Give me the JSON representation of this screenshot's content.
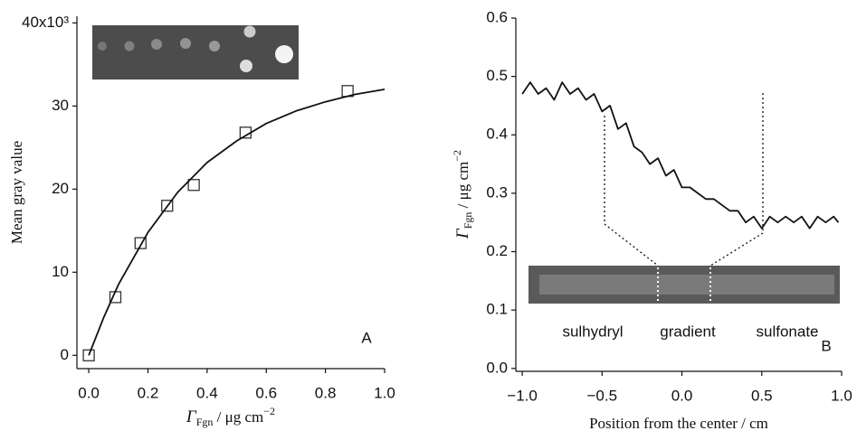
{
  "chart_data": [
    {
      "type": "scatter",
      "y_label": "Mean gray value",
      "x_label": {
        "symbol": "Γ",
        "subscript": "Fgn",
        "text": " / μg cm",
        "superscript": "−2"
      },
      "annotation": "A",
      "xlim": [
        -0.04,
        1.0
      ],
      "ylim": [
        -1.6,
        40.8
      ],
      "xticks": [
        {
          "value": 0,
          "label": "0.0"
        },
        0.2,
        0.4,
        0.6,
        0.8,
        {
          "value": 1.0,
          "label": "1.0"
        }
      ],
      "yticks": [
        0,
        10,
        20,
        30,
        {
          "value": 40,
          "label": "40x10³"
        }
      ],
      "series": [
        {
          "type": "scatter",
          "marker": "square",
          "color": "#333333",
          "x": [
            0,
            0.09,
            0.175,
            0.265,
            0.355,
            0.53,
            0.875
          ],
          "values": [
            0,
            7,
            13.5,
            18,
            20.5,
            26.8,
            31.8
          ]
        },
        {
          "type": "line",
          "color": "#111111",
          "x": [
            0,
            0.05,
            0.1,
            0.2,
            0.3,
            0.4,
            0.5,
            0.6,
            0.7,
            0.8,
            0.9,
            1.0
          ],
          "values": [
            0,
            4.5,
            8.5,
            14.8,
            19.6,
            23.2,
            25.8,
            27.9,
            29.4,
            30.5,
            31.4,
            32.0
          ]
        }
      ]
    },
    {
      "type": "line",
      "y_label": {
        "symbol": "Γ",
        "subscript": "Fgn",
        "text": " / μg cm",
        "superscript": "−2"
      },
      "x_label": "Position from the center / cm",
      "annotations": [
        "sulhydryl",
        "gradient",
        "sulfonate",
        "B"
      ],
      "xlim": [
        -1.04,
        1.0
      ],
      "ylim": [
        -0.005,
        0.6
      ],
      "xticks": [
        {
          "value": -1.0,
          "label": "−1.0"
        },
        {
          "value": -0.5,
          "label": "−0.5"
        },
        {
          "value": 0,
          "label": "0.0"
        },
        0.5,
        {
          "value": 1.0,
          "label": "1.0"
        }
      ],
      "yticks": [
        {
          "value": 0,
          "label": "0.0"
        },
        0.1,
        0.2,
        0.3,
        0.4,
        0.5,
        0.6
      ],
      "series": [
        {
          "type": "line",
          "color": "#111111",
          "x": [
            -1.0,
            -0.95,
            -0.9,
            -0.85,
            -0.8,
            -0.75,
            -0.7,
            -0.65,
            -0.6,
            -0.55,
            -0.5,
            -0.45,
            -0.4,
            -0.35,
            -0.3,
            -0.25,
            -0.2,
            -0.15,
            -0.1,
            -0.05,
            0,
            0.05,
            0.1,
            0.15,
            0.2,
            0.25,
            0.3,
            0.35,
            0.4,
            0.45,
            0.5,
            0.55,
            0.6,
            0.65,
            0.7,
            0.75,
            0.8,
            0.85,
            0.9,
            0.95,
            0.98
          ],
          "values": [
            0.47,
            0.49,
            0.47,
            0.48,
            0.46,
            0.49,
            0.47,
            0.48,
            0.46,
            0.47,
            0.44,
            0.45,
            0.41,
            0.42,
            0.38,
            0.37,
            0.35,
            0.36,
            0.33,
            0.34,
            0.31,
            0.31,
            0.3,
            0.29,
            0.29,
            0.28,
            0.27,
            0.27,
            0.25,
            0.26,
            0.24,
            0.26,
            0.25,
            0.26,
            0.25,
            0.26,
            0.24,
            0.26,
            0.25,
            0.26,
            0.25
          ]
        }
      ]
    }
  ]
}
